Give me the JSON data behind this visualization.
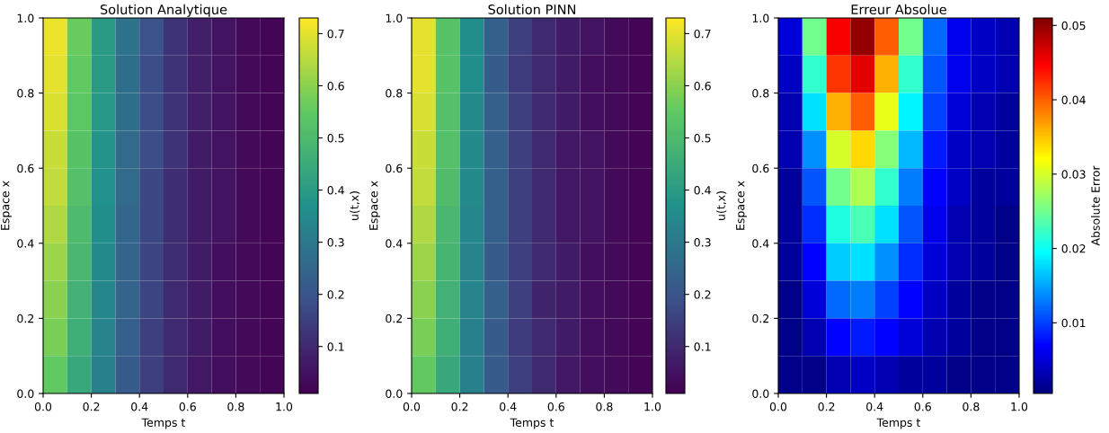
{
  "chart_data": [
    {
      "type": "heatmap",
      "title": "Solution Analytique",
      "xlabel": "Temps t",
      "ylabel": "Espace x",
      "clabel": "u(t,x)",
      "x": [
        0.05,
        0.15,
        0.25,
        0.35,
        0.45,
        0.55,
        0.65,
        0.75,
        0.85,
        0.95
      ],
      "y": [
        0.95,
        0.85,
        0.75,
        0.65,
        0.55,
        0.45,
        0.35,
        0.25,
        0.15,
        0.05
      ],
      "xlim": [
        0,
        1
      ],
      "xticks": [
        {
          "value": 0,
          "label": "0.0"
        },
        {
          "value": 0.2,
          "label": "0.2"
        },
        {
          "value": 0.4,
          "label": "0.4"
        },
        {
          "value": 0.6,
          "label": "0.6"
        },
        {
          "value": 0.8,
          "label": "0.8"
        },
        {
          "value": 1,
          "label": "1.0"
        }
      ],
      "ylim": [
        0,
        1
      ],
      "yticks": [
        {
          "value": 0,
          "label": "0.0"
        },
        {
          "value": 0.2,
          "label": "0.2"
        },
        {
          "value": 0.4,
          "label": "0.4"
        },
        {
          "value": 0.6,
          "label": "0.6"
        },
        {
          "value": 0.8,
          "label": "0.8"
        },
        {
          "value": 1,
          "label": "1.0"
        }
      ],
      "clim": [
        0.01,
        0.73
      ],
      "cticks": [
        0.1,
        0.2,
        0.3,
        0.4,
        0.5,
        0.6,
        0.7
      ],
      "colors": [
        "#440154",
        "#3b528b",
        "#21918c",
        "#5ec962",
        "#fde725"
      ],
      "cells": [
        [
          0.71,
          0.56,
          0.4,
          0.28,
          0.19,
          0.12,
          0.08,
          0.05,
          0.03,
          0.02
        ],
        [
          0.7,
          0.55,
          0.4,
          0.27,
          0.18,
          0.12,
          0.08,
          0.05,
          0.03,
          0.02
        ],
        [
          0.69,
          0.54,
          0.39,
          0.27,
          0.18,
          0.12,
          0.08,
          0.05,
          0.03,
          0.02
        ],
        [
          0.67,
          0.53,
          0.38,
          0.26,
          0.18,
          0.12,
          0.07,
          0.05,
          0.03,
          0.02
        ],
        [
          0.66,
          0.52,
          0.37,
          0.26,
          0.17,
          0.11,
          0.07,
          0.05,
          0.03,
          0.02
        ],
        [
          0.64,
          0.5,
          0.36,
          0.25,
          0.17,
          0.11,
          0.07,
          0.05,
          0.03,
          0.02
        ],
        [
          0.62,
          0.49,
          0.35,
          0.24,
          0.16,
          0.11,
          0.07,
          0.04,
          0.03,
          0.02
        ],
        [
          0.6,
          0.47,
          0.34,
          0.24,
          0.16,
          0.1,
          0.07,
          0.04,
          0.03,
          0.02
        ],
        [
          0.58,
          0.46,
          0.33,
          0.23,
          0.15,
          0.1,
          0.07,
          0.04,
          0.03,
          0.02
        ],
        [
          0.55,
          0.44,
          0.32,
          0.22,
          0.15,
          0.1,
          0.06,
          0.04,
          0.03,
          0.02
        ]
      ]
    },
    {
      "type": "heatmap",
      "title": "Solution PINN",
      "xlabel": "Temps t",
      "ylabel": "Espace x",
      "clabel": "u(t,x)",
      "x": [
        0.05,
        0.15,
        0.25,
        0.35,
        0.45,
        0.55,
        0.65,
        0.75,
        0.85,
        0.95
      ],
      "y": [
        0.95,
        0.85,
        0.75,
        0.65,
        0.55,
        0.45,
        0.35,
        0.25,
        0.15,
        0.05
      ],
      "xlim": [
        0,
        1
      ],
      "xticks": [
        {
          "value": 0,
          "label": "0.0"
        },
        {
          "value": 0.2,
          "label": "0.2"
        },
        {
          "value": 0.4,
          "label": "0.4"
        },
        {
          "value": 0.6,
          "label": "0.6"
        },
        {
          "value": 0.8,
          "label": "0.8"
        },
        {
          "value": 1,
          "label": "1.0"
        }
      ],
      "ylim": [
        0,
        1
      ],
      "yticks": [
        {
          "value": 0,
          "label": "0.0"
        },
        {
          "value": 0.2,
          "label": "0.2"
        },
        {
          "value": 0.4,
          "label": "0.4"
        },
        {
          "value": 0.6,
          "label": "0.6"
        },
        {
          "value": 0.8,
          "label": "0.8"
        },
        {
          "value": 1,
          "label": "1.0"
        }
      ],
      "clim": [
        0.01,
        0.73
      ],
      "cticks": [
        0.1,
        0.2,
        0.3,
        0.4,
        0.5,
        0.6,
        0.7
      ],
      "colors": [
        "#440154",
        "#3b528b",
        "#21918c",
        "#5ec962",
        "#fde725"
      ],
      "cells": [
        [
          0.7,
          0.53,
          0.36,
          0.23,
          0.15,
          0.1,
          0.07,
          0.05,
          0.03,
          0.02
        ],
        [
          0.7,
          0.53,
          0.36,
          0.22,
          0.14,
          0.1,
          0.07,
          0.04,
          0.03,
          0.02
        ],
        [
          0.69,
          0.52,
          0.35,
          0.23,
          0.15,
          0.1,
          0.07,
          0.04,
          0.03,
          0.02
        ],
        [
          0.67,
          0.52,
          0.35,
          0.23,
          0.15,
          0.1,
          0.06,
          0.05,
          0.03,
          0.02
        ],
        [
          0.66,
          0.51,
          0.35,
          0.23,
          0.15,
          0.1,
          0.06,
          0.05,
          0.03,
          0.02
        ],
        [
          0.64,
          0.49,
          0.34,
          0.23,
          0.15,
          0.1,
          0.06,
          0.05,
          0.03,
          0.02
        ],
        [
          0.62,
          0.48,
          0.33,
          0.22,
          0.15,
          0.1,
          0.07,
          0.04,
          0.03,
          0.02
        ],
        [
          0.6,
          0.47,
          0.33,
          0.23,
          0.15,
          0.09,
          0.07,
          0.04,
          0.03,
          0.02
        ],
        [
          0.58,
          0.46,
          0.32,
          0.22,
          0.14,
          0.1,
          0.07,
          0.04,
          0.03,
          0.02
        ],
        [
          0.55,
          0.44,
          0.32,
          0.22,
          0.15,
          0.1,
          0.06,
          0.04,
          0.03,
          0.02
        ]
      ]
    },
    {
      "type": "heatmap",
      "title": "Erreur Absolue",
      "xlabel": "Temps t",
      "ylabel": "Espace x",
      "clabel": "Absolute Error",
      "x": [
        0.05,
        0.15,
        0.25,
        0.35,
        0.45,
        0.55,
        0.65,
        0.75,
        0.85,
        0.95
      ],
      "y": [
        0.95,
        0.85,
        0.75,
        0.65,
        0.55,
        0.45,
        0.35,
        0.25,
        0.15,
        0.05
      ],
      "xlim": [
        0,
        1
      ],
      "xticks": [
        {
          "value": 0,
          "label": "0.0"
        },
        {
          "value": 0.2,
          "label": "0.2"
        },
        {
          "value": 0.4,
          "label": "0.4"
        },
        {
          "value": 0.6,
          "label": "0.6"
        },
        {
          "value": 0.8,
          "label": "0.8"
        },
        {
          "value": 1,
          "label": "1.0"
        }
      ],
      "ylim": [
        0,
        1
      ],
      "yticks": [
        {
          "value": 0,
          "label": "0.0"
        },
        {
          "value": 0.2,
          "label": "0.2"
        },
        {
          "value": 0.4,
          "label": "0.4"
        },
        {
          "value": 0.6,
          "label": "0.6"
        },
        {
          "value": 0.8,
          "label": "0.8"
        },
        {
          "value": 1,
          "label": "1.0"
        }
      ],
      "clim": [
        0.0005,
        0.051
      ],
      "cticks": [
        0.01,
        0.02,
        0.03,
        0.04,
        0.05
      ],
      "colors": [
        "#000080",
        "#0000ff",
        "#0080ff",
        "#00ffff",
        "#80ff80",
        "#ffff00",
        "#ff8000",
        "#ff0000",
        "#800000"
      ],
      "cells": [
        [
          0.005,
          0.025,
          0.045,
          0.05,
          0.04,
          0.025,
          0.012,
          0.006,
          0.004,
          0.003
        ],
        [
          0.004,
          0.022,
          0.042,
          0.046,
          0.036,
          0.022,
          0.011,
          0.006,
          0.004,
          0.003
        ],
        [
          0.003,
          0.018,
          0.036,
          0.04,
          0.031,
          0.019,
          0.01,
          0.005,
          0.003,
          0.002
        ],
        [
          0.003,
          0.014,
          0.03,
          0.034,
          0.026,
          0.016,
          0.008,
          0.004,
          0.003,
          0.002
        ],
        [
          0.002,
          0.011,
          0.025,
          0.028,
          0.022,
          0.013,
          0.007,
          0.004,
          0.002,
          0.002
        ],
        [
          0.002,
          0.009,
          0.021,
          0.023,
          0.018,
          0.011,
          0.006,
          0.003,
          0.002,
          0.001
        ],
        [
          0.002,
          0.007,
          0.017,
          0.018,
          0.014,
          0.009,
          0.005,
          0.003,
          0.002,
          0.001
        ],
        [
          0.001,
          0.005,
          0.012,
          0.013,
          0.01,
          0.007,
          0.004,
          0.002,
          0.001,
          0.001
        ],
        [
          0.001,
          0.003,
          0.007,
          0.008,
          0.007,
          0.005,
          0.003,
          0.002,
          0.001,
          0.001
        ],
        [
          0.001,
          0.001,
          0.003,
          0.004,
          0.003,
          0.002,
          0.002,
          0.001,
          0.001,
          0.001
        ]
      ]
    }
  ]
}
